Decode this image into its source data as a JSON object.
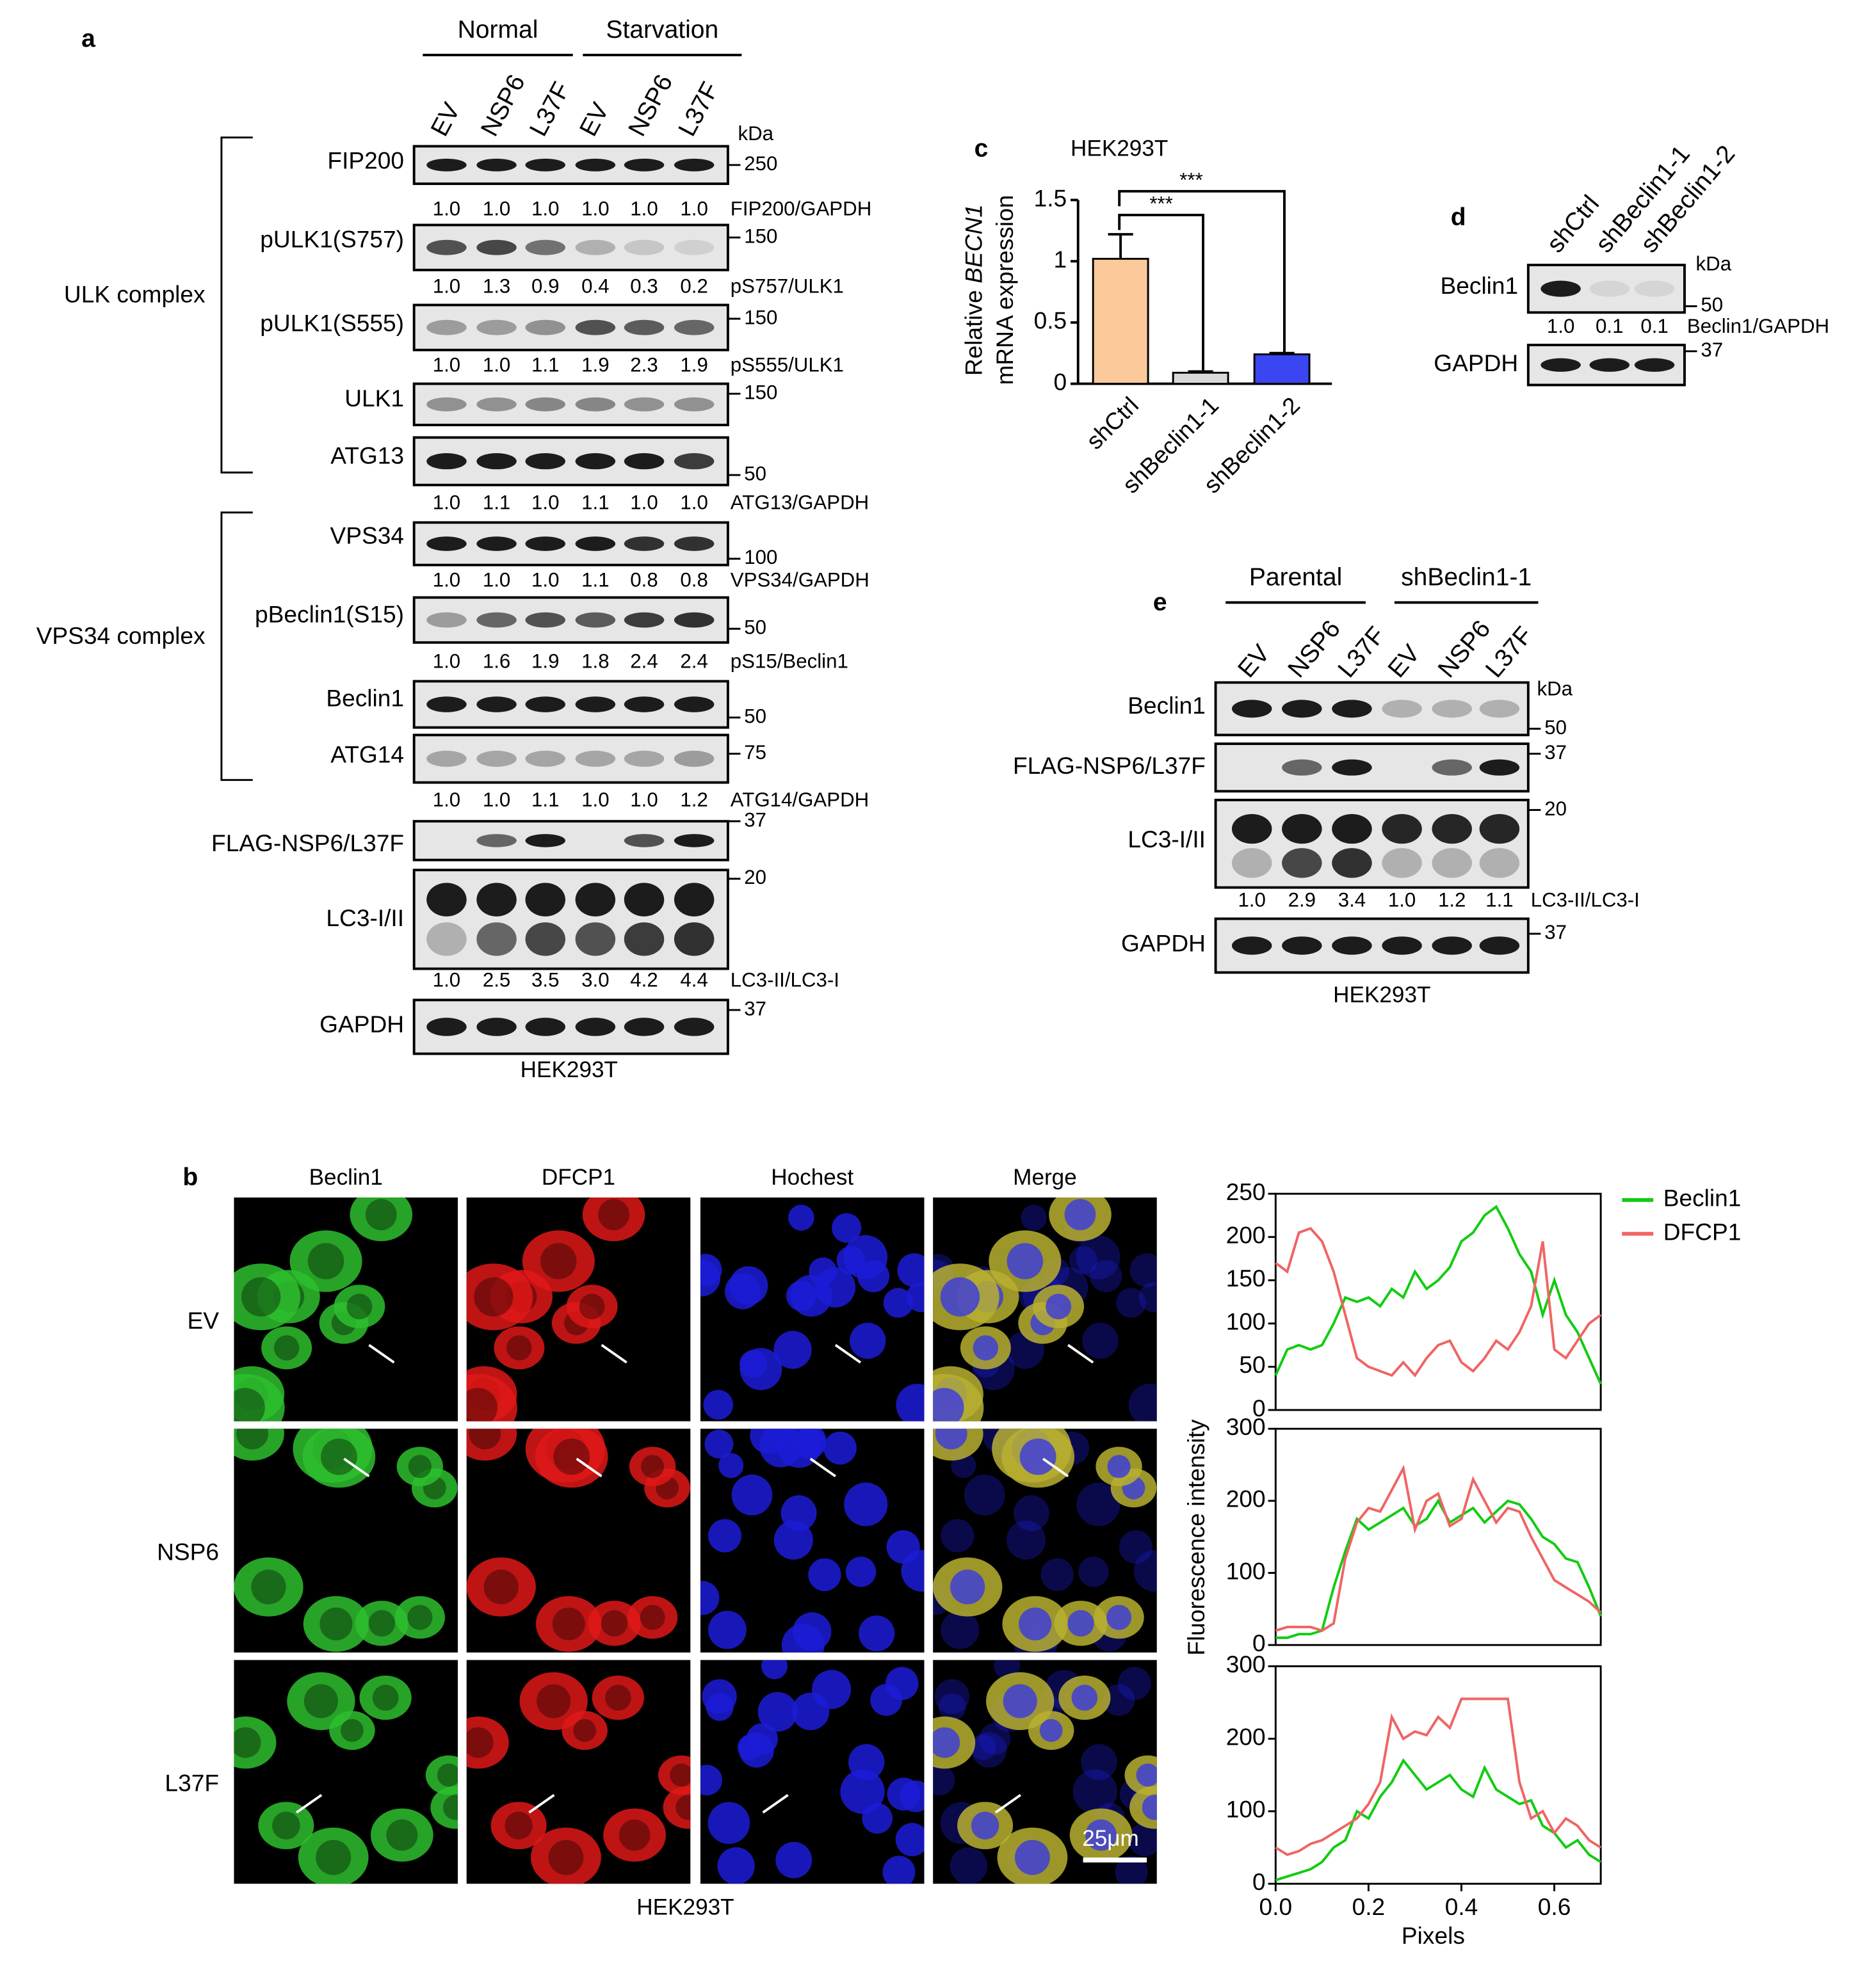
{
  "panel_labels": [
    "a",
    "b",
    "c",
    "d",
    "e"
  ],
  "panel_a": {
    "groups": [
      "Normal",
      "Starvation"
    ],
    "lanes": [
      "EV",
      "NSP6",
      "L37F",
      "EV",
      "NSP6",
      "L37F"
    ],
    "kda": "kDa",
    "complexes": [
      "ULK complex",
      "VPS34 complex"
    ],
    "rows": [
      {
        "label": "FIP200",
        "marker": "250",
        "ratios": [
          "1.0",
          "1.0",
          "1.0",
          "1.0",
          "1.0",
          "1.0"
        ],
        "ratio_label": "FIP200/GAPDH"
      },
      {
        "label": "pULK1(S757)",
        "marker": "150",
        "ratios": [
          "1.0",
          "1.3",
          "0.9",
          "0.4",
          "0.3",
          "0.2"
        ],
        "ratio_label": "pS757/ULK1"
      },
      {
        "label": "pULK1(S555)",
        "marker": "150",
        "ratios": [
          "1.0",
          "1.0",
          "1.1",
          "1.9",
          "2.3",
          "1.9"
        ],
        "ratio_label": "pS555/ULK1"
      },
      {
        "label": "ULK1",
        "marker": "150"
      },
      {
        "label": "ATG13",
        "marker": "50",
        "ratios": [
          "1.0",
          "1.1",
          "1.0",
          "1.1",
          "1.0",
          "1.0"
        ],
        "ratio_label": "ATG13/GAPDH"
      },
      {
        "label": "VPS34",
        "marker": "100",
        "ratios": [
          "1.0",
          "1.0",
          "1.0",
          "1.1",
          "0.8",
          "0.8"
        ],
        "ratio_label": "VPS34/GAPDH"
      },
      {
        "label": "pBeclin1(S15)",
        "marker": "50",
        "ratios": [
          "1.0",
          "1.6",
          "1.9",
          "1.8",
          "2.4",
          "2.4"
        ],
        "ratio_label": "pS15/Beclin1"
      },
      {
        "label": "Beclin1",
        "marker": "50"
      },
      {
        "label": "ATG14",
        "marker": "75",
        "ratios": [
          "1.0",
          "1.0",
          "1.1",
          "1.0",
          "1.0",
          "1.2"
        ],
        "ratio_label": "ATG14/GAPDH"
      },
      {
        "label": "FLAG-NSP6/L37F",
        "marker": "37"
      },
      {
        "label": "LC3-I/II",
        "marker": "20",
        "ratios": [
          "1.0",
          "2.5",
          "3.5",
          "3.0",
          "4.2",
          "4.4"
        ],
        "ratio_label": "LC3-II/LC3-I"
      },
      {
        "label": "GAPDH",
        "marker": "37"
      }
    ],
    "cell_line": "HEK293T"
  },
  "panel_b": {
    "channels": [
      "Beclin1",
      "DFCP1",
      "Hochest",
      "Merge"
    ],
    "conditions": [
      "EV",
      "NSP6",
      "L37F"
    ],
    "scale_bar": "25μm",
    "cell_line": "HEK293T"
  },
  "panel_d": {
    "lanes": [
      "shCtrl",
      "shBeclin1-1",
      "shBeclin1-2"
    ],
    "kda": "kDa",
    "rows": [
      {
        "label": "Beclin1",
        "marker": "50",
        "ratios": [
          "1.0",
          "0.1",
          "0.1"
        ],
        "ratio_label": "Beclin1/GAPDH"
      },
      {
        "label": "GAPDH",
        "marker": "37"
      }
    ]
  },
  "panel_e": {
    "groups": [
      "Parental",
      "shBeclin1-1"
    ],
    "lanes": [
      "EV",
      "NSP6",
      "L37F",
      "EV",
      "NSP6",
      "L37F"
    ],
    "kda": "kDa",
    "rows": [
      {
        "label": "Beclin1",
        "marker": "50"
      },
      {
        "label": "FLAG-NSP6/L37F",
        "marker": "37"
      },
      {
        "label": "LC3-I/II",
        "marker": "20",
        "ratios": [
          "1.0",
          "2.9",
          "3.4",
          "1.0",
          "1.2",
          "1.1"
        ],
        "ratio_label": "LC3-II/LC3-I"
      },
      {
        "label": "GAPDH",
        "marker": "37"
      }
    ],
    "cell_line": "HEK293T"
  },
  "chart_data": [
    {
      "type": "bar",
      "title": "HEK293T",
      "y_label": [
        "Relative ",
        "BECN1",
        "mRNA expression"
      ],
      "categories": [
        "shCtrl",
        "shBeclin1-1",
        "shBeclin1-2"
      ],
      "values": [
        1.02,
        0.09,
        0.24
      ],
      "errors": [
        0.2,
        0.01,
        0.01
      ],
      "colors": [
        "#fbc99a",
        "#d9d9d9",
        "#3a46f2"
      ],
      "ylim": [
        0,
        1.5
      ],
      "yticks": [
        0,
        0.5,
        1,
        1.5
      ],
      "annotations": [
        "***",
        "***"
      ]
    },
    {
      "type": "line",
      "x": [
        0,
        0.025,
        0.05,
        0.075,
        0.1,
        0.125,
        0.15,
        0.175,
        0.2,
        0.225,
        0.25,
        0.275,
        0.3,
        0.325,
        0.35,
        0.375,
        0.4,
        0.425,
        0.45,
        0.475,
        0.5,
        0.525,
        0.55,
        0.575,
        0.6,
        0.625,
        0.65,
        0.675,
        0.7
      ],
      "series": [
        {
          "name": "Beclin1",
          "color": "#11cc11",
          "values": [
            40,
            70,
            75,
            70,
            75,
            100,
            130,
            125,
            130,
            120,
            140,
            130,
            160,
            140,
            150,
            165,
            195,
            205,
            225,
            235,
            210,
            180,
            160,
            110,
            150,
            110,
            90,
            60,
            30
          ]
        },
        {
          "name": "DFCP1",
          "color": "#f06464",
          "values": [
            170,
            160,
            205,
            210,
            195,
            160,
            110,
            60,
            50,
            45,
            40,
            55,
            40,
            60,
            75,
            80,
            55,
            45,
            60,
            80,
            70,
            90,
            120,
            195,
            70,
            60,
            80,
            100,
            110
          ]
        }
      ],
      "xlim": [
        0,
        0.7
      ],
      "ylim": [
        0,
        250
      ],
      "yticks": [
        0,
        50,
        100,
        150,
        200,
        250
      ]
    },
    {
      "type": "line",
      "x": [
        0,
        0.025,
        0.05,
        0.075,
        0.1,
        0.125,
        0.15,
        0.175,
        0.2,
        0.225,
        0.25,
        0.275,
        0.3,
        0.325,
        0.35,
        0.375,
        0.4,
        0.425,
        0.45,
        0.475,
        0.5,
        0.525,
        0.55,
        0.575,
        0.6,
        0.625,
        0.65,
        0.675,
        0.7
      ],
      "series": [
        {
          "color": "#11cc11",
          "values": [
            10,
            10,
            15,
            15,
            20,
            80,
            130,
            175,
            160,
            170,
            180,
            190,
            165,
            175,
            200,
            170,
            180,
            190,
            170,
            185,
            200,
            195,
            175,
            150,
            140,
            120,
            115,
            80,
            40
          ]
        },
        {
          "color": "#f06464",
          "values": [
            20,
            25,
            25,
            25,
            20,
            30,
            120,
            170,
            190,
            185,
            215,
            245,
            160,
            200,
            210,
            165,
            175,
            230,
            200,
            170,
            190,
            185,
            150,
            120,
            90,
            80,
            70,
            60,
            45
          ]
        }
      ],
      "xlim": [
        0,
        0.7
      ],
      "ylim": [
        0,
        300
      ],
      "yticks": [
        0,
        100,
        200,
        300
      ],
      "y_label": "Fluorescence intensity"
    },
    {
      "type": "line",
      "x": [
        0,
        0.025,
        0.05,
        0.075,
        0.1,
        0.125,
        0.15,
        0.175,
        0.2,
        0.225,
        0.25,
        0.275,
        0.3,
        0.325,
        0.35,
        0.375,
        0.4,
        0.425,
        0.45,
        0.475,
        0.5,
        0.525,
        0.55,
        0.575,
        0.6,
        0.625,
        0.65,
        0.675,
        0.7
      ],
      "series": [
        {
          "color": "#11cc11",
          "values": [
            5,
            10,
            15,
            20,
            30,
            50,
            60,
            100,
            90,
            120,
            140,
            170,
            150,
            130,
            140,
            150,
            130,
            120,
            160,
            130,
            120,
            110,
            115,
            80,
            70,
            50,
            60,
            40,
            30
          ]
        },
        {
          "color": "#f06464",
          "values": [
            50,
            40,
            45,
            55,
            60,
            70,
            80,
            90,
            110,
            140,
            230,
            200,
            210,
            205,
            230,
            215,
            255,
            255,
            255,
            255,
            255,
            140,
            90,
            100,
            70,
            90,
            80,
            60,
            50
          ]
        }
      ],
      "xlim": [
        0,
        0.7
      ],
      "ylim": [
        0,
        300
      ],
      "yticks": [
        0,
        100,
        200,
        300
      ],
      "xticks": [
        {
          "value": 0,
          "label": "0.0"
        },
        0.2,
        0.4,
        0.6
      ],
      "x_label": "Pixels"
    }
  ]
}
